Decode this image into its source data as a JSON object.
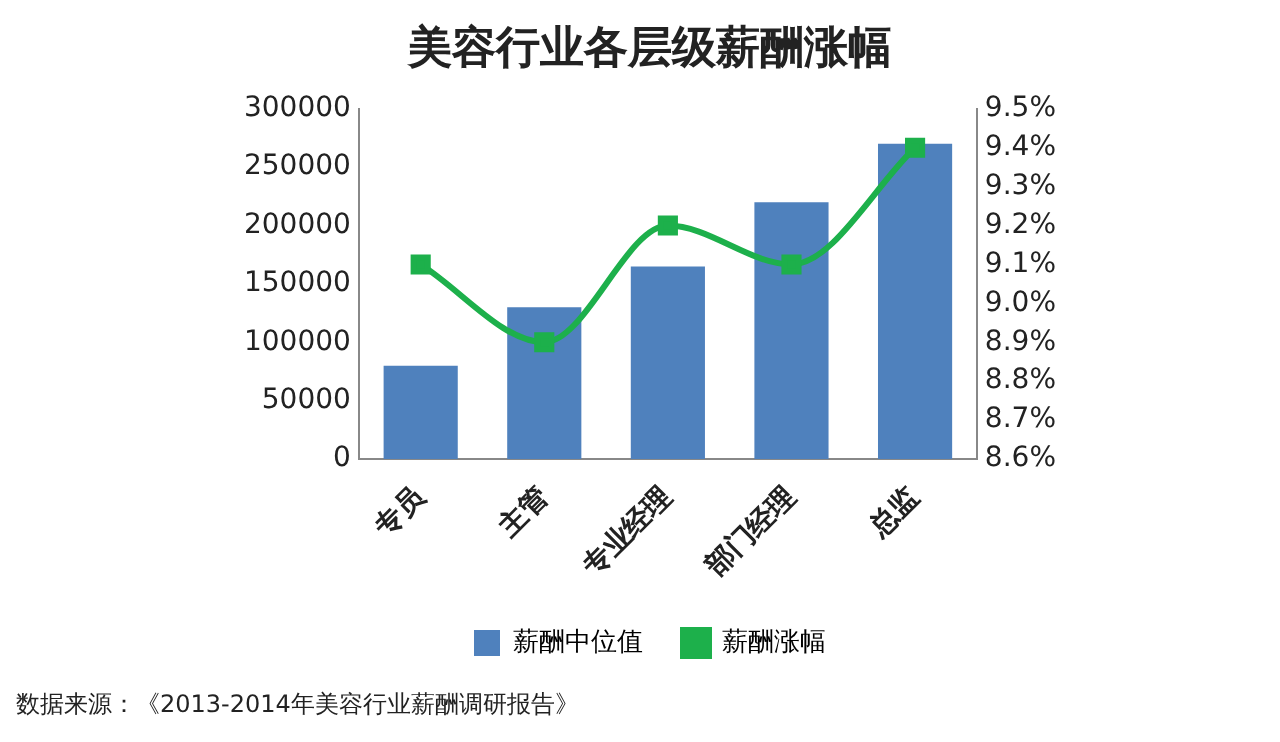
{
  "chart_data": {
    "type": "bar",
    "title": "美容行业各层级薪酬涨幅",
    "categories": [
      "专员",
      "主管",
      "专业经理",
      "部门经理",
      "总监"
    ],
    "series": [
      {
        "name": "薪酬中位值",
        "color": "#4f81bd",
        "values": [
          80000,
          130000,
          165000,
          220000,
          270000
        ]
      },
      {
        "name": "薪酬涨幅",
        "type": "line",
        "axis": "y2",
        "color": "#1db04b",
        "values": [
          9.1,
          8.9,
          9.2,
          9.1,
          9.4
        ]
      }
    ],
    "ylim": [
      0,
      300000
    ],
    "yticks": [
      0,
      50000,
      100000,
      150000,
      200000,
      250000,
      300000
    ],
    "y2lim": [
      8.6,
      9.5
    ],
    "y2ticks": [
      {
        "value": 8.6,
        "label": "8.6%"
      },
      {
        "value": 8.7,
        "label": "8.7%"
      },
      {
        "value": 8.8,
        "label": "8.8%"
      },
      {
        "value": 8.9,
        "label": "8.9%"
      },
      {
        "value": 9.0,
        "label": "9.0%"
      },
      {
        "value": 9.1,
        "label": "9.1%"
      },
      {
        "value": 9.2,
        "label": "9.2%"
      },
      {
        "value": 9.3,
        "label": "9.3%"
      },
      {
        "value": 9.4,
        "label": "9.4%"
      },
      {
        "value": 9.5,
        "label": "9.5%"
      }
    ],
    "grid": false,
    "legend": "bottom",
    "marker": "square",
    "annotations": [
      "数据来源：《2013-2014年美容行业薪酬调研报告》"
    ]
  }
}
